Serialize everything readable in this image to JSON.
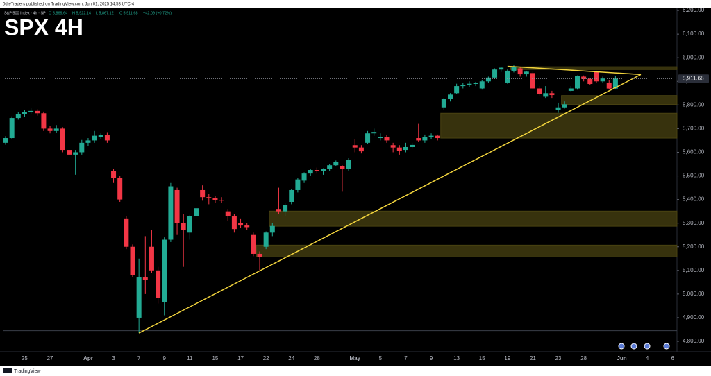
{
  "header": {
    "publisher": "0dteTraders published on TradingView.com, Jun 01, 2025 14:53 UTC-4"
  },
  "legend": {
    "symbol": "S&P 500 Index · 4h · SP",
    "open": "O 5,869.64",
    "high": "H 5,922.14",
    "low": "L 5,867.12",
    "close": "C 5,911.68",
    "change": "+42.09 (+0.72%)"
  },
  "footer": {
    "brand": "TradingView"
  },
  "chart_data": {
    "type": "candlestick",
    "title": "SPX 4H",
    "categories": [
      null,
      null,
      null,
      "25",
      null,
      null,
      null,
      "27",
      null,
      null,
      null,
      null,
      null,
      "Apr",
      null,
      null,
      null,
      "3",
      null,
      null,
      null,
      "7",
      null,
      null,
      null,
      "9",
      null,
      null,
      null,
      "11",
      null,
      null,
      null,
      "15",
      null,
      null,
      null,
      "17",
      null,
      null,
      null,
      "22",
      null,
      null,
      null,
      "24",
      null,
      null,
      null,
      "28",
      null,
      null,
      null,
      null,
      null,
      "May",
      null,
      null,
      null,
      "5",
      null,
      null,
      null,
      "7",
      null,
      null,
      null,
      "9",
      null,
      null,
      null,
      "13",
      null,
      null,
      null,
      "15",
      null,
      null,
      null,
      "19",
      null,
      null,
      null,
      "21",
      null,
      null,
      null,
      "23",
      null,
      null,
      null,
      "28",
      null,
      null,
      null,
      null,
      null,
      "Jun",
      null,
      null,
      null,
      "4",
      null,
      null,
      null,
      "6"
    ],
    "open": [
      5640,
      5660,
      5745,
      5760,
      5770,
      5775,
      5765,
      5700,
      5690,
      5700,
      5610,
      5590,
      5600,
      5640,
      5650,
      5665,
      5672,
      5520,
      5490,
      5320,
      5200,
      4900,
      5070,
      5200,
      5100,
      4965,
      5230,
      5440,
      5300,
      5260,
      5330,
      5440,
      5410,
      5405,
      5398,
      5350,
      5330,
      5300,
      5290,
      5250,
      5170,
      5200,
      5260,
      5360,
      5350,
      5390,
      5440,
      5480,
      5510,
      5525,
      5520,
      5530,
      5545,
      5540,
      5530,
      5630,
      5620,
      5640,
      5680,
      5660,
      5665,
      5630,
      5620,
      5610,
      5622,
      5660,
      5650,
      5665,
      5670,
      5790,
      5825,
      5850,
      5880,
      5886,
      5890,
      5870,
      5900,
      5916,
      5950,
      5895,
      5945,
      5955,
      5930,
      5935,
      5870,
      5835,
      5850,
      5780,
      5790,
      5860,
      5870,
      5920,
      5910,
      5940,
      5900,
      5895,
      5869.64,
      null,
      null,
      null,
      null,
      null,
      null,
      null,
      null,
      null
    ],
    "high": [
      5668,
      5752,
      5770,
      5778,
      5786,
      5782,
      5772,
      5712,
      5715,
      5706,
      5622,
      5610,
      5652,
      5660,
      5690,
      5680,
      5685,
      5530,
      5500,
      5330,
      5210,
      5150,
      5245,
      5270,
      5115,
      5240,
      5470,
      5450,
      5340,
      5335,
      5375,
      5460,
      5425,
      5415,
      5410,
      5360,
      5340,
      5320,
      5300,
      5260,
      5180,
      5265,
      5300,
      5450,
      5385,
      5445,
      5490,
      5515,
      5530,
      5535,
      5532,
      5550,
      5565,
      5545,
      5575,
      5655,
      5630,
      5690,
      5700,
      5680,
      5672,
      5640,
      5630,
      5640,
      5640,
      5720,
      5675,
      5680,
      5675,
      5830,
      5850,
      5890,
      5895,
      5900,
      5898,
      5905,
      5920,
      5955,
      5962,
      5950,
      5968,
      5960,
      5945,
      5945,
      5880,
      5880,
      5860,
      5810,
      5815,
      5880,
      5925,
      5925,
      5915,
      5945,
      5920,
      5905,
      5922.14,
      null,
      null,
      null,
      null,
      null,
      null,
      null,
      null,
      null
    ],
    "low": [
      5632,
      5655,
      5738,
      5750,
      5760,
      5755,
      5690,
      5680,
      5682,
      5600,
      5580,
      5505,
      5590,
      5625,
      5640,
      5655,
      5640,
      5470,
      5390,
      5190,
      5070,
      4835,
      5000,
      5090,
      4960,
      4910,
      5220,
      5250,
      5115,
      5230,
      5320,
      5395,
      5380,
      5385,
      5385,
      5310,
      5260,
      5280,
      5270,
      5160,
      5101,
      5190,
      5245,
      5340,
      5330,
      5380,
      5430,
      5470,
      5500,
      5510,
      5505,
      5520,
      5540,
      5433,
      5520,
      5600,
      5595,
      5635,
      5670,
      5650,
      5640,
      5600,
      5590,
      5600,
      5615,
      5645,
      5640,
      5655,
      5650,
      5780,
      5815,
      5845,
      5870,
      5875,
      5880,
      5865,
      5895,
      5910,
      5940,
      5890,
      5938,
      5920,
      5920,
      5865,
      5840,
      5830,
      5830,
      5767,
      5785,
      5855,
      5865,
      5900,
      5885,
      5895,
      5895,
      5865,
      5867.12,
      null,
      null,
      null,
      null,
      null,
      null,
      null,
      null,
      null
    ],
    "close": [
      5660,
      5745,
      5760,
      5770,
      5775,
      5765,
      5700,
      5690,
      5700,
      5610,
      5590,
      5600,
      5640,
      5650,
      5670,
      5672,
      5650,
      5490,
      5400,
      5200,
      5080,
      5070,
      5060,
      5100,
      4982,
      5230,
      5456,
      5300,
      5270,
      5330,
      5363,
      5410,
      5405,
      5398,
      5396,
      5330,
      5275,
      5290,
      5283,
      5170,
      5158,
      5260,
      5288,
      5350,
      5376,
      5440,
      5485,
      5510,
      5525,
      5520,
      5529,
      5545,
      5560,
      5530,
      5569,
      5620,
      5604,
      5680,
      5686,
      5665,
      5650,
      5620,
      5606,
      5622,
      5631,
      5650,
      5664,
      5670,
      5660,
      5825,
      5844,
      5880,
      5886,
      5890,
      5892,
      5900,
      5916,
      5950,
      5958,
      5945,
      5964,
      5930,
      5941,
      5870,
      5845,
      5850,
      5842,
      5790,
      5803,
      5870,
      5922,
      5910,
      5889,
      5900,
      5912,
      5869.59,
      5911.68,
      null,
      null,
      null,
      null,
      null,
      null,
      null,
      null,
      null
    ],
    "up_color": "#22ab94",
    "down_color": "#f23645",
    "ylim": [
      4756,
      6209
    ],
    "yticks": [
      {
        "value": 4800,
        "label": "4,800.00"
      },
      {
        "value": 4900,
        "label": "4,900.00"
      },
      {
        "value": 5000,
        "label": "5,000.00"
      },
      {
        "value": 5100,
        "label": "5,100.00"
      },
      {
        "value": 5200,
        "label": "5,200.00"
      },
      {
        "value": 5300,
        "label": "5,300.00"
      },
      {
        "value": 5400,
        "label": "5,400.00"
      },
      {
        "value": 5500,
        "label": "5,500.00"
      },
      {
        "value": 5600,
        "label": "5,600.00"
      },
      {
        "value": 5700,
        "label": "5,700.00"
      },
      {
        "value": 5800,
        "label": "5,800.00"
      },
      {
        "value": 5900,
        "label": "5,900.00"
      },
      {
        "value": 6000,
        "label": "6,000.00"
      },
      {
        "value": 6100,
        "label": "6,100.00"
      },
      {
        "value": 6200,
        "label": "6,200.00"
      }
    ],
    "grid": false,
    "last_price": {
      "value": 5911.68,
      "label": "5,911.68"
    },
    "zones": [
      {
        "from": 69,
        "low": 5660,
        "high": 5765
      },
      {
        "from": 88,
        "low": 5802,
        "high": 5840
      },
      {
        "from": 42,
        "low": 5287,
        "high": 5351
      },
      {
        "from": 40,
        "low": 5157,
        "high": 5207
      },
      {
        "from": 80,
        "low": 5950,
        "high": 5962
      }
    ],
    "zone_color": "#4a4312",
    "trendlines": [
      {
        "from": [
          21,
          4835
        ],
        "to": [
          100,
          5929
        ]
      },
      {
        "from": [
          79,
          5964
        ],
        "to": [
          100,
          5929
        ]
      }
    ],
    "trendline_color": "#f2d43d",
    "hlines": [
      4845
    ]
  }
}
